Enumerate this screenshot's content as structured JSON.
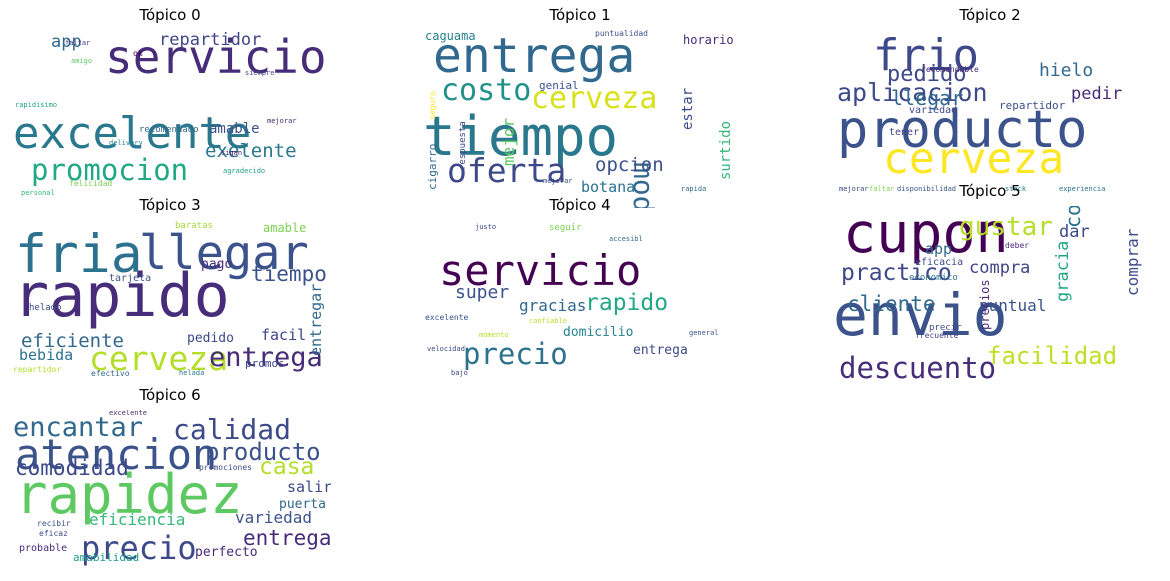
{
  "chart_data": {
    "type": "wordcloud",
    "colormap": "viridis",
    "panels": [
      {
        "title": "Tópico 0",
        "words": [
          {
            "text": "servicio",
            "weight": 1.0,
            "color": "#472c7a"
          },
          {
            "text": "excelente",
            "weight": 0.95,
            "color": "#2a788e"
          },
          {
            "text": "promocion",
            "weight": 0.62,
            "color": "#22a884"
          },
          {
            "text": "exelente",
            "weight": 0.42,
            "color": "#2a788e"
          },
          {
            "text": "repartidor",
            "weight": 0.38,
            "color": "#414487"
          },
          {
            "text": "app",
            "weight": 0.36,
            "color": "#31688e"
          },
          {
            "text": "amable",
            "weight": 0.3,
            "color": "#3b528b"
          },
          {
            "text": "recomendado",
            "weight": 0.2,
            "color": "#31688e"
          },
          {
            "text": "felicidad",
            "weight": 0.17,
            "color": "#7ad151"
          },
          {
            "text": "ok",
            "weight": 0.17,
            "color": "#440154"
          },
          {
            "text": "mejorar",
            "weight": 0.13,
            "color": "#482878"
          },
          {
            "text": "rapidisimo",
            "weight": 0.12,
            "color": "#20a486"
          },
          {
            "text": "amigo",
            "weight": 0.12,
            "color": "#5ec962"
          },
          {
            "text": "siempre",
            "weight": 0.12,
            "color": "#3e4989"
          },
          {
            "text": "delivery",
            "weight": 0.11,
            "color": "#26828e"
          },
          {
            "text": "sigan",
            "weight": 0.11,
            "color": "#481a6c"
          },
          {
            "text": "personal",
            "weight": 0.11,
            "color": "#35b779"
          },
          {
            "text": "faltar",
            "weight": 0.11,
            "color": "#443983"
          },
          {
            "text": "agradecido",
            "weight": 0.1,
            "color": "#1f9e89"
          }
        ]
      },
      {
        "title": "Tópico 1",
        "words": [
          {
            "text": "tiempo",
            "weight": 1.0,
            "color": "#2a788e"
          },
          {
            "text": "entrega",
            "weight": 0.88,
            "color": "#31688e"
          },
          {
            "text": "oferta",
            "weight": 0.62,
            "color": "#3e4989"
          },
          {
            "text": "costo",
            "weight": 0.55,
            "color": "#21918c"
          },
          {
            "text": "cerveza",
            "weight": 0.55,
            "color": "#d8e219"
          },
          {
            "text": "modelo",
            "weight": 0.52,
            "color": "#31688e"
          },
          {
            "text": "opcion",
            "weight": 0.36,
            "color": "#3b528b"
          },
          {
            "text": "botana",
            "weight": 0.28,
            "color": "#2c728e"
          },
          {
            "text": "mejor",
            "weight": 0.3,
            "color": "#5ec962"
          },
          {
            "text": "surtido",
            "weight": 0.25,
            "color": "#35b779"
          },
          {
            "text": "estar",
            "weight": 0.25,
            "color": "#3e4989"
          },
          {
            "text": "caguama",
            "weight": 0.22,
            "color": "#26828e"
          },
          {
            "text": "horario",
            "weight": 0.22,
            "color": "#472c7a"
          },
          {
            "text": "genial",
            "weight": 0.2,
            "color": "#3b528b"
          },
          {
            "text": "cigarro",
            "weight": 0.2,
            "color": "#31688e"
          },
          {
            "text": "respuesta",
            "weight": 0.17,
            "color": "#3e4989"
          },
          {
            "text": "puntualidad",
            "weight": 0.14,
            "color": "#3b528b"
          },
          {
            "text": "seguro",
            "weight": 0.15,
            "color": "#fde725"
          },
          {
            "text": "mejorar",
            "weight": 0.13,
            "color": "#3e4989"
          },
          {
            "text": "rapida",
            "weight": 0.1,
            "color": "#31688e"
          }
        ]
      },
      {
        "title": "Tópico 2",
        "words": [
          {
            "text": "producto",
            "weight": 1.0,
            "color": "#3b528b"
          },
          {
            "text": "frio",
            "weight": 0.85,
            "color": "#3e4989"
          },
          {
            "text": "cerveza",
            "weight": 0.82,
            "color": "#fde725"
          },
          {
            "text": "aplicacion",
            "weight": 0.48,
            "color": "#3e4989"
          },
          {
            "text": "pedido",
            "weight": 0.42,
            "color": "#3e4989"
          },
          {
            "text": "llegar",
            "weight": 0.38,
            "color": "#31688e"
          },
          {
            "text": "hielo",
            "weight": 0.35,
            "color": "#31688e"
          },
          {
            "text": "pedir",
            "weight": 0.33,
            "color": "#472c7a"
          },
          {
            "text": "repartidor",
            "weight": 0.22,
            "color": "#3b528b"
          },
          {
            "text": "variedad",
            "weight": 0.2,
            "color": "#3e4989"
          },
          {
            "text": "tener",
            "weight": 0.2,
            "color": "#414487"
          },
          {
            "text": "recomendable",
            "weight": 0.15,
            "color": "#482878"
          },
          {
            "text": "mejorar",
            "weight": 0.12,
            "color": "#3e4989"
          },
          {
            "text": "disponibilidad",
            "weight": 0.11,
            "color": "#3b528b"
          },
          {
            "text": "experiencia",
            "weight": 0.11,
            "color": "#2c728e"
          },
          {
            "text": "faltar",
            "weight": 0.11,
            "color": "#7ad151"
          },
          {
            "text": "stock",
            "weight": 0.11,
            "color": "#26828e"
          }
        ]
      },
      {
        "title": "Tópico 3",
        "words": [
          {
            "text": "rapido",
            "weight": 1.0,
            "color": "#472c7a"
          },
          {
            "text": "fria",
            "weight": 0.88,
            "color": "#2c728e"
          },
          {
            "text": "llegar",
            "weight": 0.78,
            "color": "#3b528b"
          },
          {
            "text": "cerveza",
            "weight": 0.55,
            "color": "#b5de2b"
          },
          {
            "text": "entrega",
            "weight": 0.45,
            "color": "#472c7a"
          },
          {
            "text": "tiempo",
            "weight": 0.35,
            "color": "#3b528b"
          },
          {
            "text": "eficiente",
            "weight": 0.32,
            "color": "#31688e"
          },
          {
            "text": "entregar",
            "weight": 0.25,
            "color": "#31688e"
          },
          {
            "text": "bebida",
            "weight": 0.25,
            "color": "#2c728e"
          },
          {
            "text": "facil",
            "weight": 0.25,
            "color": "#414487"
          },
          {
            "text": "pedido",
            "weight": 0.22,
            "color": "#3e4989"
          },
          {
            "text": "amable",
            "weight": 0.2,
            "color": "#7ad151"
          },
          {
            "text": "pago",
            "weight": 0.22,
            "color": "#472c7a"
          },
          {
            "text": "tarjeta",
            "weight": 0.17,
            "color": "#3b528b"
          },
          {
            "text": "baratas",
            "weight": 0.15,
            "color": "#a0da39"
          },
          {
            "text": "helado",
            "weight": 0.15,
            "color": "#3e4989"
          },
          {
            "text": "promos",
            "weight": 0.18,
            "color": "#3e4989"
          },
          {
            "text": "efectivo",
            "weight": 0.13,
            "color": "#31688e"
          },
          {
            "text": "helada",
            "weight": 0.12,
            "color": "#2a788e"
          },
          {
            "text": "repartidor",
            "weight": 0.13,
            "color": "#b5de2b"
          }
        ]
      },
      {
        "title": "Tópico 4",
        "words": [
          {
            "text": "servicio",
            "weight": 1.0,
            "color": "#440154"
          },
          {
            "text": "precio",
            "weight": 0.68,
            "color": "#2c728e"
          },
          {
            "text": "rapido",
            "weight": 0.55,
            "color": "#22a884"
          },
          {
            "text": "super",
            "weight": 0.42,
            "color": "#3b528b"
          },
          {
            "text": "gracias",
            "weight": 0.38,
            "color": "#31688e"
          },
          {
            "text": "entrega",
            "weight": 0.32,
            "color": "#3e4989"
          },
          {
            "text": "domicilio",
            "weight": 0.3,
            "color": "#26828e"
          },
          {
            "text": "seguir",
            "weight": 0.22,
            "color": "#7ad151"
          },
          {
            "text": "excelente",
            "weight": 0.18,
            "color": "#3b528b"
          },
          {
            "text": "confiable",
            "weight": 0.17,
            "color": "#b5de2b"
          },
          {
            "text": "velocidad",
            "weight": 0.15,
            "color": "#3e4989"
          },
          {
            "text": "accesibl",
            "weight": 0.13,
            "color": "#31688e"
          },
          {
            "text": "justo",
            "weight": 0.13,
            "color": "#3e4989"
          },
          {
            "text": "general",
            "weight": 0.13,
            "color": "#3b528b"
          },
          {
            "text": "momento",
            "weight": 0.11,
            "color": "#b5de2b"
          },
          {
            "text": "bajo",
            "weight": 0.11,
            "color": "#414487"
          }
        ]
      },
      {
        "title": "Tópico 5",
        "words": [
          {
            "text": "envio",
            "weight": 1.0,
            "color": "#3b528b"
          },
          {
            "text": "cupon",
            "weight": 0.95,
            "color": "#440154"
          },
          {
            "text": "descuento",
            "weight": 0.5,
            "color": "#472c7a"
          },
          {
            "text": "gustar",
            "weight": 0.45,
            "color": "#b5de2b"
          },
          {
            "text": "facilidad",
            "weight": 0.42,
            "color": "#bddf26"
          },
          {
            "text": "practico",
            "weight": 0.4,
            "color": "#3e4989"
          },
          {
            "text": "cliente",
            "weight": 0.36,
            "color": "#31688e"
          },
          {
            "text": "compra",
            "weight": 0.3,
            "color": "#414487"
          },
          {
            "text": "cobrar",
            "weight": 0.35,
            "color": "#2c728e"
          },
          {
            "text": "gracia",
            "weight": 0.3,
            "color": "#20a486"
          },
          {
            "text": "comprar",
            "weight": 0.28,
            "color": "#3e4989"
          },
          {
            "text": "puntual",
            "weight": 0.28,
            "color": "#3b528b"
          },
          {
            "text": "dar",
            "weight": 0.3,
            "color": "#3e4989"
          },
          {
            "text": "app",
            "weight": 0.25,
            "color": "#31688e"
          },
          {
            "text": "precios",
            "weight": 0.2,
            "color": "#472c7a"
          },
          {
            "text": "eficacia",
            "weight": 0.18,
            "color": "#3e4989"
          },
          {
            "text": "economico",
            "weight": 0.15,
            "color": "#2c728e"
          },
          {
            "text": "frecuente",
            "weight": 0.14,
            "color": "#414487"
          },
          {
            "text": "precir",
            "weight": 0.15,
            "color": "#3e4989"
          },
          {
            "text": "deber",
            "weight": 0.14,
            "color": "#482878"
          }
        ]
      },
      {
        "title": "Tópico 6",
        "words": [
          {
            "text": "rapidez",
            "weight": 1.0,
            "color": "#5ec962"
          },
          {
            "text": "atencion",
            "weight": 0.78,
            "color": "#3b528b"
          },
          {
            "text": "precio",
            "weight": 0.6,
            "color": "#3e4989"
          },
          {
            "text": "calidad",
            "weight": 0.52,
            "color": "#3e4989"
          },
          {
            "text": "encantar",
            "weight": 0.5,
            "color": "#31688e"
          },
          {
            "text": "producto",
            "weight": 0.45,
            "color": "#3b528b"
          },
          {
            "text": "casa",
            "weight": 0.42,
            "color": "#b5de2b"
          },
          {
            "text": "comodidad",
            "weight": 0.38,
            "color": "#3e4989"
          },
          {
            "text": "entrega",
            "weight": 0.38,
            "color": "#472c7a"
          },
          {
            "text": "eficiencia",
            "weight": 0.3,
            "color": "#35b779"
          },
          {
            "text": "variedad",
            "weight": 0.3,
            "color": "#3b528b"
          },
          {
            "text": "salir",
            "weight": 0.28,
            "color": "#3e4989"
          },
          {
            "text": "puerta",
            "weight": 0.24,
            "color": "#31688e"
          },
          {
            "text": "perfecto",
            "weight": 0.24,
            "color": "#472c7a"
          },
          {
            "text": "amabilidad",
            "weight": 0.2,
            "color": "#1f9e89"
          },
          {
            "text": "probable",
            "weight": 0.18,
            "color": "#472c7a"
          },
          {
            "text": "promociones",
            "weight": 0.15,
            "color": "#3e4989"
          },
          {
            "text": "recibir",
            "weight": 0.15,
            "color": "#3b528b"
          },
          {
            "text": "eficaz",
            "weight": 0.15,
            "color": "#3e4989"
          },
          {
            "text": "excelente",
            "weight": 0.13,
            "color": "#482878"
          }
        ]
      }
    ]
  }
}
